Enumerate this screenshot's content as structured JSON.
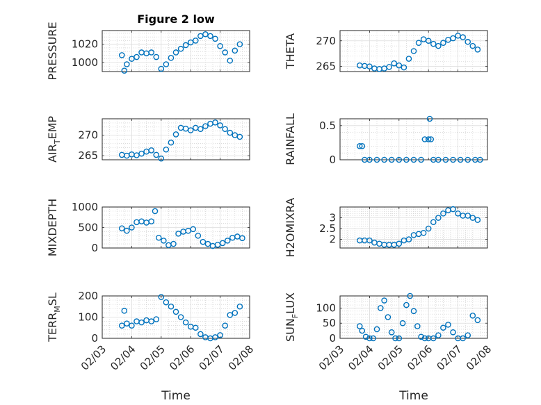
{
  "chart_data": [
    {
      "type": "scatter",
      "title": "Figure 2 low",
      "ylabel": "PRESSURE",
      "xlabel": "",
      "xlim": [
        "02/03",
        "02/08"
      ],
      "ylim": [
        990,
        1035
      ],
      "yticks": [
        1000,
        1020
      ],
      "xticklabels": [],
      "marker_color": "#0072bd",
      "grid": "on",
      "x": [
        "02/03 16:00",
        "02/03 18:00",
        "02/03 20:00",
        "02/04 00:00",
        "02/04 04:00",
        "02/04 08:00",
        "02/04 12:00",
        "02/04 16:00",
        "02/04 20:00",
        "02/05 00:00",
        "02/05 04:00",
        "02/05 08:00",
        "02/05 12:00",
        "02/05 16:00",
        "02/05 20:00",
        "02/06 00:00",
        "02/06 04:00",
        "02/06 08:00",
        "02/06 12:00",
        "02/06 16:00",
        "02/06 20:00",
        "02/07 00:00",
        "02/07 04:00",
        "02/07 08:00",
        "02/07 12:00",
        "02/07 16:00"
      ],
      "y": [
        1008,
        991,
        998,
        1004,
        1006,
        1011,
        1010,
        1011,
        1006,
        993,
        998,
        1005,
        1011,
        1015,
        1019,
        1022,
        1024,
        1029,
        1031,
        1029,
        1026,
        1018,
        1011,
        1002,
        1013,
        1020
      ]
    },
    {
      "type": "scatter",
      "title": "",
      "ylabel": "THETA",
      "xlabel": "",
      "xlim": [
        "02/03",
        "02/08"
      ],
      "ylim": [
        264,
        272
      ],
      "yticks": [
        265,
        270
      ],
      "xticklabels": [],
      "marker_color": "#0072bd",
      "grid": "on",
      "x": [
        "02/03 16:00",
        "02/03 20:00",
        "02/04 00:00",
        "02/04 04:00",
        "02/04 08:00",
        "02/04 12:00",
        "02/04 16:00",
        "02/04 20:00",
        "02/05 00:00",
        "02/05 04:00",
        "02/05 08:00",
        "02/05 12:00",
        "02/05 16:00",
        "02/05 20:00",
        "02/06 00:00",
        "02/06 04:00",
        "02/06 08:00",
        "02/06 12:00",
        "02/06 16:00",
        "02/06 20:00",
        "02/07 00:00",
        "02/07 04:00",
        "02/07 08:00",
        "02/07 12:00",
        "02/07 16:00"
      ],
      "y": [
        265.2,
        265.1,
        265.0,
        264.6,
        264.5,
        264.6,
        264.9,
        265.6,
        265.2,
        264.8,
        266.5,
        268.0,
        269.6,
        270.3,
        270.0,
        269.4,
        269.0,
        269.6,
        270.2,
        270.5,
        271.0,
        270.7,
        269.8,
        269.0,
        268.3
      ]
    },
    {
      "type": "scatter",
      "title": "",
      "ylabel": "AIR_TEMP",
      "xlabel": "",
      "xlim": [
        "02/03",
        "02/08"
      ],
      "ylim": [
        264,
        274
      ],
      "yticks": [
        265,
        270
      ],
      "xticklabels": [],
      "marker_color": "#0072bd",
      "grid": "on",
      "x": [
        "02/03 16:00",
        "02/03 20:00",
        "02/04 00:00",
        "02/04 04:00",
        "02/04 08:00",
        "02/04 12:00",
        "02/04 16:00",
        "02/04 20:00",
        "02/05 00:00",
        "02/05 04:00",
        "02/05 08:00",
        "02/05 12:00",
        "02/05 16:00",
        "02/05 20:00",
        "02/06 00:00",
        "02/06 04:00",
        "02/06 08:00",
        "02/06 12:00",
        "02/06 16:00",
        "02/06 20:00",
        "02/07 00:00",
        "02/07 04:00",
        "02/07 08:00",
        "02/07 12:00",
        "02/07 16:00"
      ],
      "y": [
        265.2,
        265.0,
        265.3,
        265.1,
        265.5,
        266.0,
        266.3,
        265.2,
        264.3,
        266.5,
        268.2,
        270.2,
        271.8,
        271.6,
        271.2,
        271.8,
        271.5,
        272.2,
        272.8,
        273.1,
        272.4,
        271.5,
        270.6,
        270.0,
        269.6
      ]
    },
    {
      "type": "scatter",
      "title": "",
      "ylabel": "RAINFALL",
      "xlabel": "",
      "xlim": [
        "02/03",
        "02/08"
      ],
      "ylim": [
        0,
        0.6
      ],
      "yticks": [
        0,
        0.5
      ],
      "xticklabels": [],
      "marker_color": "#0072bd",
      "grid": "on",
      "x": [
        "02/03 16:00",
        "02/03 18:00",
        "02/03 20:00",
        "02/04 00:00",
        "02/04 06:00",
        "02/04 12:00",
        "02/04 18:00",
        "02/05 00:00",
        "02/05 06:00",
        "02/05 12:00",
        "02/05 18:00",
        "02/05 21:00",
        "02/06 00:00",
        "02/06 01:00",
        "02/06 02:00",
        "02/06 04:00",
        "02/06 08:00",
        "02/06 14:00",
        "02/06 20:00",
        "02/07 02:00",
        "02/07 08:00",
        "02/07 14:00",
        "02/07 18:00"
      ],
      "y": [
        0.2,
        0.2,
        0,
        0,
        0,
        0,
        0,
        0,
        0,
        0,
        0,
        0.3,
        0.3,
        0.6,
        0.3,
        0,
        0,
        0,
        0,
        0,
        0,
        0,
        0
      ]
    },
    {
      "type": "scatter",
      "title": "",
      "ylabel": "MIXDEPTH",
      "xlabel": "",
      "xlim": [
        "02/03",
        "02/08"
      ],
      "ylim": [
        0,
        1000
      ],
      "yticks": [
        0,
        500,
        1000
      ],
      "xticklabels": [],
      "marker_color": "#0072bd",
      "grid": "on",
      "x": [
        "02/03 16:00",
        "02/03 20:00",
        "02/04 00:00",
        "02/04 04:00",
        "02/04 08:00",
        "02/04 12:00",
        "02/04 16:00",
        "02/04 19:00",
        "02/04 22:00",
        "02/05 02:00",
        "02/05 06:00",
        "02/05 10:00",
        "02/05 14:00",
        "02/05 18:00",
        "02/05 22:00",
        "02/06 02:00",
        "02/06 06:00",
        "02/06 10:00",
        "02/06 14:00",
        "02/06 18:00",
        "02/06 22:00",
        "02/07 02:00",
        "02/07 06:00",
        "02/07 10:00",
        "02/07 14:00",
        "02/07 18:00"
      ],
      "y": [
        480,
        420,
        500,
        630,
        650,
        620,
        650,
        900,
        250,
        180,
        70,
        100,
        350,
        400,
        420,
        460,
        300,
        150,
        100,
        50,
        80,
        120,
        180,
        250,
        280,
        240
      ]
    },
    {
      "type": "scatter",
      "title": "",
      "ylabel": "H2OMIXRA",
      "xlabel": "",
      "xlim": [
        "02/03",
        "02/08"
      ],
      "ylim": [
        1.6,
        3.5
      ],
      "yticks": [
        2,
        2.5,
        3
      ],
      "xticklabels": [],
      "marker_color": "#0072bd",
      "grid": "on",
      "x": [
        "02/03 16:00",
        "02/03 20:00",
        "02/04 00:00",
        "02/04 04:00",
        "02/04 08:00",
        "02/04 12:00",
        "02/04 16:00",
        "02/04 20:00",
        "02/05 00:00",
        "02/05 04:00",
        "02/05 08:00",
        "02/05 12:00",
        "02/05 16:00",
        "02/05 20:00",
        "02/06 00:00",
        "02/06 04:00",
        "02/06 08:00",
        "02/06 12:00",
        "02/06 16:00",
        "02/06 20:00",
        "02/07 00:00",
        "02/07 04:00",
        "02/07 08:00",
        "02/07 12:00",
        "02/07 16:00"
      ],
      "y": [
        1.95,
        1.95,
        1.95,
        1.85,
        1.8,
        1.75,
        1.75,
        1.75,
        1.8,
        1.95,
        2.0,
        2.2,
        2.25,
        2.3,
        2.5,
        2.8,
        3.0,
        3.2,
        3.35,
        3.4,
        3.2,
        3.1,
        3.1,
        3.0,
        2.9
      ]
    },
    {
      "type": "scatter",
      "title": "",
      "ylabel": "TERR_MSL",
      "xlabel": "Time",
      "xlim": [
        "02/03",
        "02/08"
      ],
      "ylim": [
        0,
        200
      ],
      "yticks": [
        0,
        100,
        200
      ],
      "xticklabels": [
        "02/03",
        "02/04",
        "02/05",
        "02/06",
        "02/07",
        "02/08"
      ],
      "marker_color": "#0072bd",
      "grid": "on",
      "x": [
        "02/03 16:00",
        "02/03 18:00",
        "02/03 20:00",
        "02/04 00:00",
        "02/04 04:00",
        "02/04 08:00",
        "02/04 12:00",
        "02/04 16:00",
        "02/04 20:00",
        "02/05 00:00",
        "02/05 04:00",
        "02/05 08:00",
        "02/05 12:00",
        "02/05 16:00",
        "02/05 20:00",
        "02/06 00:00",
        "02/06 04:00",
        "02/06 08:00",
        "02/06 12:00",
        "02/06 16:00",
        "02/06 20:00",
        "02/07 00:00",
        "02/07 04:00",
        "02/07 08:00",
        "02/07 12:00",
        "02/07 16:00"
      ],
      "y": [
        60,
        130,
        70,
        60,
        80,
        75,
        85,
        80,
        90,
        195,
        170,
        150,
        125,
        100,
        75,
        55,
        50,
        20,
        5,
        0,
        5,
        15,
        60,
        110,
        120,
        150
      ]
    },
    {
      "type": "scatter",
      "title": "",
      "ylabel": "SUN_FLUX",
      "xlabel": "Time",
      "xlim": [
        "02/03",
        "02/08"
      ],
      "ylim": [
        0,
        140
      ],
      "yticks": [
        0,
        50,
        100
      ],
      "xticklabels": [
        "02/03",
        "02/04",
        "02/05",
        "02/06",
        "02/07",
        "02/08"
      ],
      "marker_color": "#0072bd",
      "grid": "on",
      "x": [
        "02/03 16:00",
        "02/03 18:00",
        "02/03 21:00",
        "02/04 00:00",
        "02/04 03:00",
        "02/04 06:00",
        "02/04 09:00",
        "02/04 12:00",
        "02/04 15:00",
        "02/04 18:00",
        "02/04 21:00",
        "02/05 00:00",
        "02/05 03:00",
        "02/05 06:00",
        "02/05 09:00",
        "02/05 12:00",
        "02/05 15:00",
        "02/05 18:00",
        "02/05 21:00",
        "02/06 00:00",
        "02/06 04:00",
        "02/06 08:00",
        "02/06 12:00",
        "02/06 16:00",
        "02/06 20:00",
        "02/07 00:00",
        "02/07 04:00",
        "02/07 08:00",
        "02/07 12:00",
        "02/07 16:00"
      ],
      "y": [
        40,
        25,
        5,
        0,
        0,
        30,
        100,
        125,
        70,
        20,
        0,
        0,
        50,
        110,
        140,
        90,
        40,
        5,
        0,
        0,
        0,
        10,
        35,
        45,
        20,
        0,
        0,
        10,
        75,
        60
      ]
    }
  ]
}
